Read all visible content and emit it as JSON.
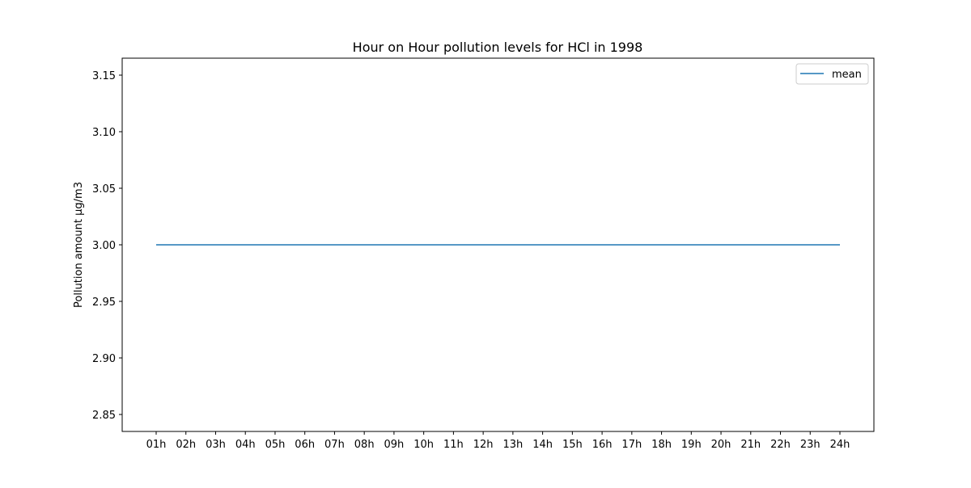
{
  "chart_data": {
    "type": "line",
    "title": "Hour on Hour pollution levels for HCl in 1998",
    "xlabel": "",
    "ylabel": "Pollution amount µg/m3",
    "categories": [
      "01h",
      "02h",
      "03h",
      "04h",
      "05h",
      "06h",
      "07h",
      "08h",
      "09h",
      "10h",
      "11h",
      "12h",
      "13h",
      "14h",
      "15h",
      "16h",
      "17h",
      "18h",
      "19h",
      "20h",
      "21h",
      "22h",
      "23h",
      "24h"
    ],
    "series": [
      {
        "name": "mean",
        "color": "#1f77b4",
        "values": [
          3.0,
          3.0,
          3.0,
          3.0,
          3.0,
          3.0,
          3.0,
          3.0,
          3.0,
          3.0,
          3.0,
          3.0,
          3.0,
          3.0,
          3.0,
          3.0,
          3.0,
          3.0,
          3.0,
          3.0,
          3.0,
          3.0,
          3.0,
          3.0
        ]
      }
    ],
    "ylim": [
      2.835,
      3.165
    ],
    "yticks": [
      2.85,
      2.9,
      2.95,
      3.0,
      3.05,
      3.1,
      3.15
    ],
    "ytick_labels": [
      "2.85",
      "2.90",
      "2.95",
      "3.00",
      "3.05",
      "3.10",
      "3.15"
    ],
    "grid": false,
    "legend_position": "top-right"
  }
}
